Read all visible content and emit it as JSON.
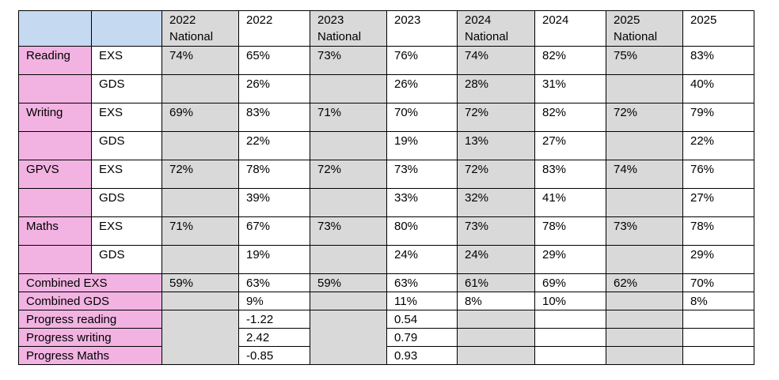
{
  "headers": [
    "",
    "",
    "2022\nNational",
    "2022",
    "2023\nNational",
    "2023",
    "2024\nNational",
    "2024",
    "2025\nNational",
    "2025"
  ],
  "rows": [
    {
      "subject": "Reading",
      "measure": "EXS",
      "values": [
        "74%",
        "65%",
        "73%",
        "76%",
        "74%",
        "82%",
        "75%",
        "83%"
      ]
    },
    {
      "subject": "",
      "measure": "GDS",
      "values": [
        "",
        "26%",
        "",
        "26%",
        "28%",
        "31%",
        "",
        "40%"
      ]
    },
    {
      "subject": "Writing",
      "measure": "EXS",
      "values": [
        "69%",
        "83%",
        "71%",
        "70%",
        "72%",
        "82%",
        "72%",
        "79%"
      ]
    },
    {
      "subject": "",
      "measure": "GDS",
      "values": [
        "",
        "22%",
        "",
        "19%",
        "13%",
        "27%",
        "",
        "22%"
      ]
    },
    {
      "subject": "GPVS",
      "measure": "EXS",
      "values": [
        "72%",
        "78%",
        "72%",
        "73%",
        "72%",
        "83%",
        "74%",
        "76%"
      ]
    },
    {
      "subject": "",
      "measure": "GDS",
      "values": [
        "",
        "39%",
        "",
        "33%",
        "32%",
        "41%",
        "",
        "27%"
      ]
    },
    {
      "subject": "Maths",
      "measure": "EXS",
      "values": [
        "71%",
        "67%",
        "73%",
        "80%",
        "73%",
        "78%",
        "73%",
        "78%"
      ]
    },
    {
      "subject": "",
      "measure": "GDS",
      "values": [
        "",
        "19%",
        "",
        "24%",
        "24%",
        "29%",
        "",
        "29%"
      ]
    }
  ],
  "combined": [
    {
      "label": "Combined EXS",
      "values": [
        "59%",
        "63%",
        "59%",
        "63%",
        "61%",
        "69%",
        "62%",
        "70%"
      ]
    },
    {
      "label": "Combined GDS",
      "values": [
        "",
        "9%",
        "",
        "11%",
        "8%",
        "10%",
        "",
        "8%"
      ]
    }
  ],
  "progress": [
    {
      "label": "Progress reading",
      "values": [
        "-1.22",
        "0.54",
        "",
        "",
        "",
        ""
      ]
    },
    {
      "label": "Progress writing",
      "values": [
        "2.42",
        "0.79",
        "",
        "",
        "",
        ""
      ]
    },
    {
      "label": "Progress Maths",
      "values": [
        "-0.85",
        "0.93",
        "",
        "",
        "",
        ""
      ]
    }
  ]
}
